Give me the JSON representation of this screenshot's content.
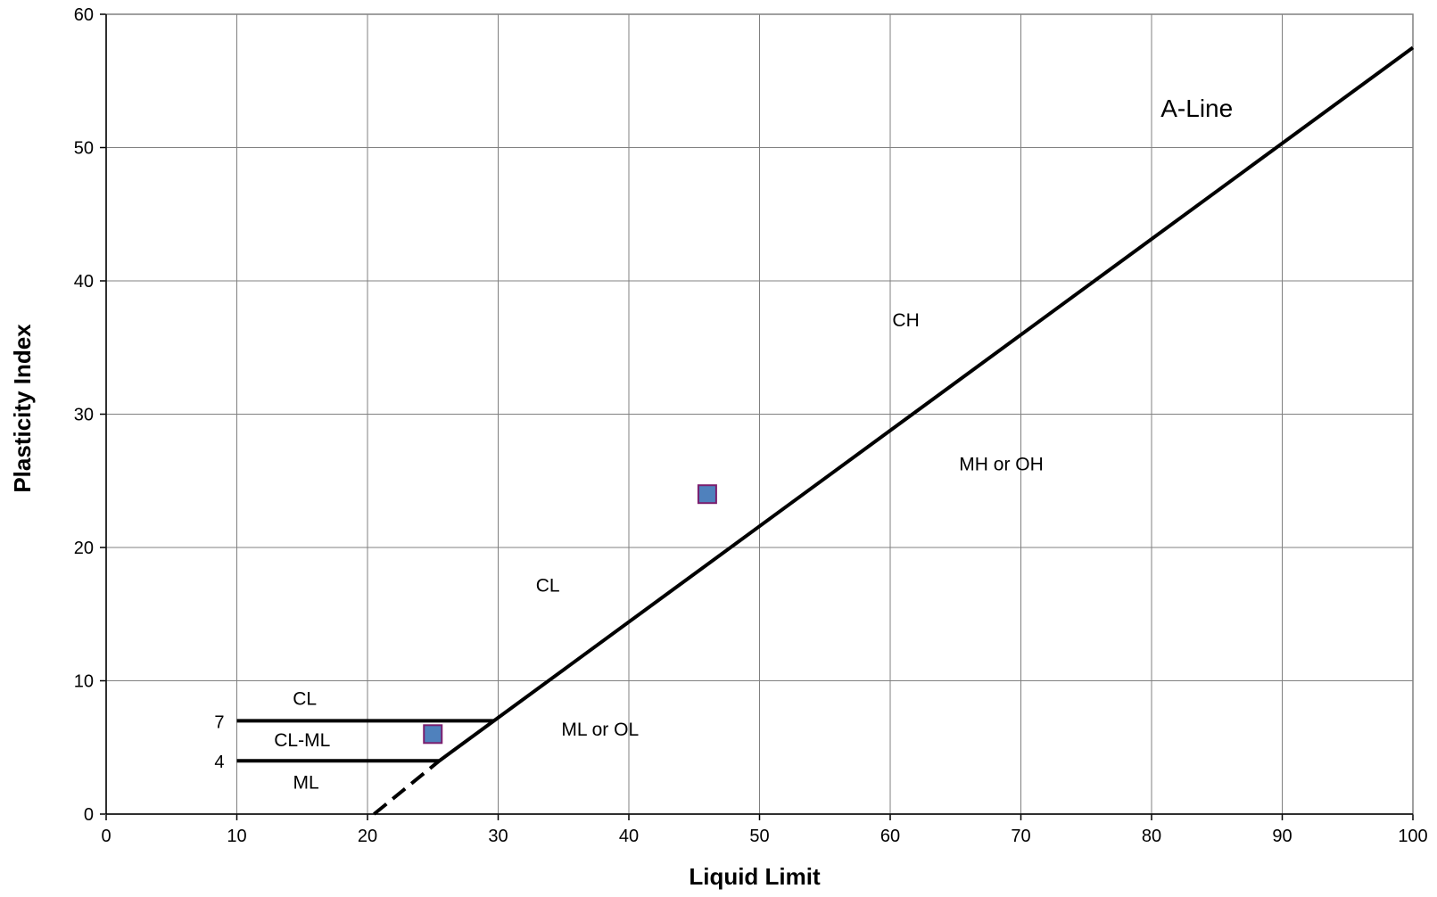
{
  "chart_data": {
    "type": "scatter",
    "xlabel": "Liquid Limit",
    "ylabel": "Plasticity Index",
    "xlim": [
      0,
      100
    ],
    "ylim": [
      0,
      60
    ],
    "xticks": [
      0,
      10,
      20,
      30,
      40,
      50,
      60,
      70,
      80,
      90,
      100
    ],
    "yticks": [
      0,
      10,
      20,
      30,
      40,
      50,
      60
    ],
    "grid": true,
    "legend": "none",
    "colors": {
      "marker_fill": "#4f81bd",
      "marker_edge": "#7b1e6e",
      "line": "#000000",
      "grid": "#808080"
    },
    "series": [
      {
        "points": [
          {
            "x": 25,
            "y": 6
          },
          {
            "x": 46,
            "y": 24
          }
        ]
      }
    ],
    "lines": {
      "a_line": {
        "label": "A-Line",
        "points": [
          {
            "x": 25.5,
            "y": 4
          },
          {
            "x": 100,
            "y": 57.5
          }
        ]
      },
      "a_line_extension_dashed": {
        "points": [
          {
            "x": 20.5,
            "y": 0
          },
          {
            "x": 25.5,
            "y": 4
          }
        ]
      },
      "pi_7": {
        "label": "7",
        "points": [
          {
            "x": 10,
            "y": 7
          },
          {
            "x": 29.7,
            "y": 7
          }
        ]
      },
      "pi_4": {
        "label": "4",
        "points": [
          {
            "x": 10,
            "y": 4
          },
          {
            "x": 25.5,
            "y": 4
          }
        ]
      }
    },
    "annotations": [
      {
        "text": "CH",
        "x": 61.2,
        "y": 36.6
      },
      {
        "text": "MH or OH",
        "x": 68.5,
        "y": 25.8
      },
      {
        "text": "CL",
        "x": 33.8,
        "y": 16.7
      },
      {
        "text": "CL",
        "x": 15.2,
        "y": 8.2
      },
      {
        "text": "CL-ML",
        "x": 15.0,
        "y": 5.1
      },
      {
        "text": "ML",
        "x": 15.3,
        "y": 1.9
      },
      {
        "text": "ML or OL",
        "x": 37.8,
        "y": 5.9
      }
    ]
  }
}
